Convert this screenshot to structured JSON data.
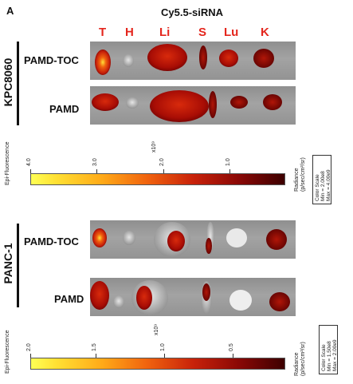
{
  "panel_letter": "A",
  "figure_title": "Cy5.5-siRNA",
  "organs": [
    "T",
    "H",
    "Li",
    "S",
    "Lu",
    "K"
  ],
  "colors": {
    "organ_label": "#e4261d",
    "signal_high": "#ffe13a",
    "signal_mid": "#e2320f",
    "signal_low": "#6e0202",
    "background": "#9a9a9a",
    "tissue_gray": "#c9c9c9"
  },
  "panels": [
    {
      "cell_line": "KPC8060",
      "rows": [
        "PAMD-TOC",
        "PAMD"
      ],
      "scale": {
        "side_label": "Epi-Fluorescence",
        "multiplier": "x10⁹",
        "ticks": [
          "4.0",
          "3.0",
          "2.0",
          "1.0"
        ],
        "units": "Radiance\n(p/sec/cm²/sr)",
        "color_scale": [
          "Color Scale",
          "Min = 2.00e8",
          "Max = 4.00e9"
        ]
      }
    },
    {
      "cell_line": "PANC-1",
      "rows": [
        "PAMD-TOC",
        "PAMD"
      ],
      "scale": {
        "side_label": "Epi-Fluorescence",
        "multiplier": "x10⁹",
        "ticks": [
          "2.0",
          "1.5",
          "1.0",
          "0.5"
        ],
        "units": "Radiance\n(p/sec/cm²/sr)",
        "color_scale": [
          "Color Scale",
          "Min = 1.50e8",
          "Max = 2.00e9"
        ]
      }
    }
  ]
}
